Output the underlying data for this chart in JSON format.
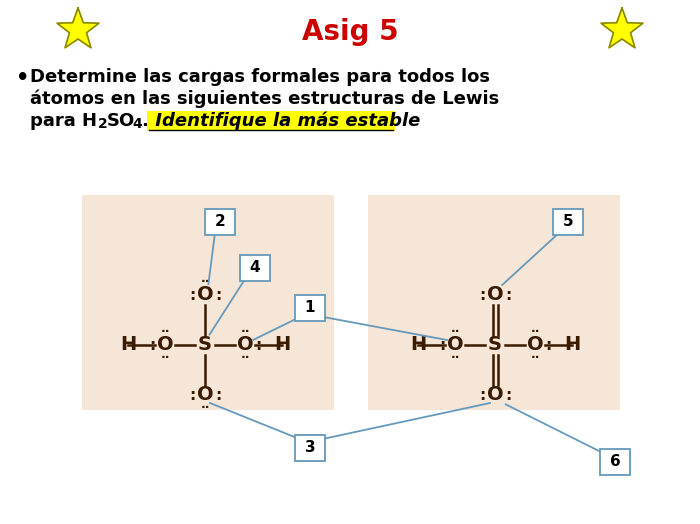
{
  "title": "Asig 5",
  "title_color": "#cc0000",
  "title_fontsize": 20,
  "bg_color": "#ffffff",
  "panel_bg": "#f5e6d8",
  "text_line1": "Determine las cargas formales para todos los",
  "text_line2": "átomos en las siguientes estructuras de Lewis",
  "text_line3_plain": "para H",
  "text_line3_sub": "2",
  "text_line3_after": "SO",
  "text_line3_sub2": "4",
  "text_line3_end": ".",
  "text_highlight": " Identifique la más estable",
  "highlight_color": "#ffff00",
  "text_fontsize": 13,
  "star_color": "#ffff00",
  "star_edge": "#888800",
  "callout_border": "#6699bb",
  "callout_bg": "#ffffff",
  "labels": [
    "1",
    "2",
    "3",
    "4",
    "5",
    "6"
  ],
  "mol_color": "#3a1a00"
}
